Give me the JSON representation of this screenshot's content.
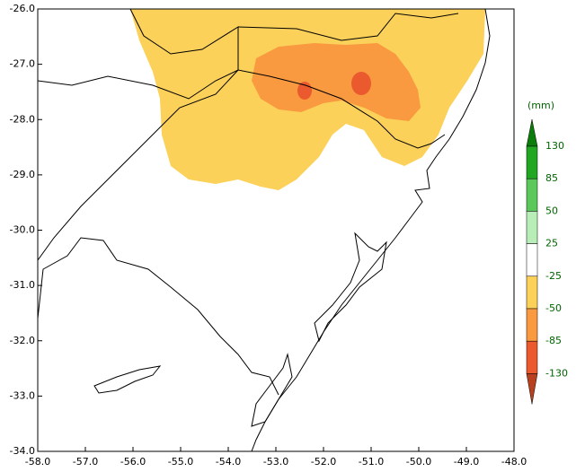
{
  "chart_data": {
    "type": "map",
    "xlim": [
      -58,
      -48
    ],
    "xticks": [
      {
        "value": -58,
        "label": "-58.0"
      },
      {
        "value": -57,
        "label": "-57.0"
      },
      {
        "value": -56,
        "label": "-56.0"
      },
      {
        "value": -55,
        "label": "-55.0"
      },
      {
        "value": -54,
        "label": "-54.0"
      },
      {
        "value": -53,
        "label": "-53.0"
      },
      {
        "value": -52,
        "label": "-52.0"
      },
      {
        "value": -51,
        "label": "-51.0"
      },
      {
        "value": -50,
        "label": "-50.0"
      },
      {
        "value": -49,
        "label": "-49.0"
      },
      {
        "value": -48,
        "label": "-48.0"
      }
    ],
    "ylim": [
      -34,
      -26
    ],
    "yticks": [
      {
        "value": -26,
        "label": "-26.0"
      },
      {
        "value": -27,
        "label": "-27.0"
      },
      {
        "value": -28,
        "label": "-28.0"
      },
      {
        "value": -29,
        "label": "-29.0"
      },
      {
        "value": -30,
        "label": "-30.0"
      },
      {
        "value": -31,
        "label": "-31.0"
      },
      {
        "value": -32,
        "label": "-32.0"
      },
      {
        "value": -33,
        "label": "-33.0"
      },
      {
        "value": -34,
        "label": "-34.0"
      }
    ],
    "colorbar": {
      "unit": "(mm)",
      "levels": [
        130,
        85,
        50,
        25,
        -25,
        -50,
        -85,
        -130
      ],
      "colors": [
        "#0a7d0a",
        "#22a722",
        "#5cc85c",
        "#b8edb8",
        "#ffffff",
        "#fcd15a",
        "#f99a40",
        "#ea5a2e",
        "#b8401e"
      ]
    }
  }
}
